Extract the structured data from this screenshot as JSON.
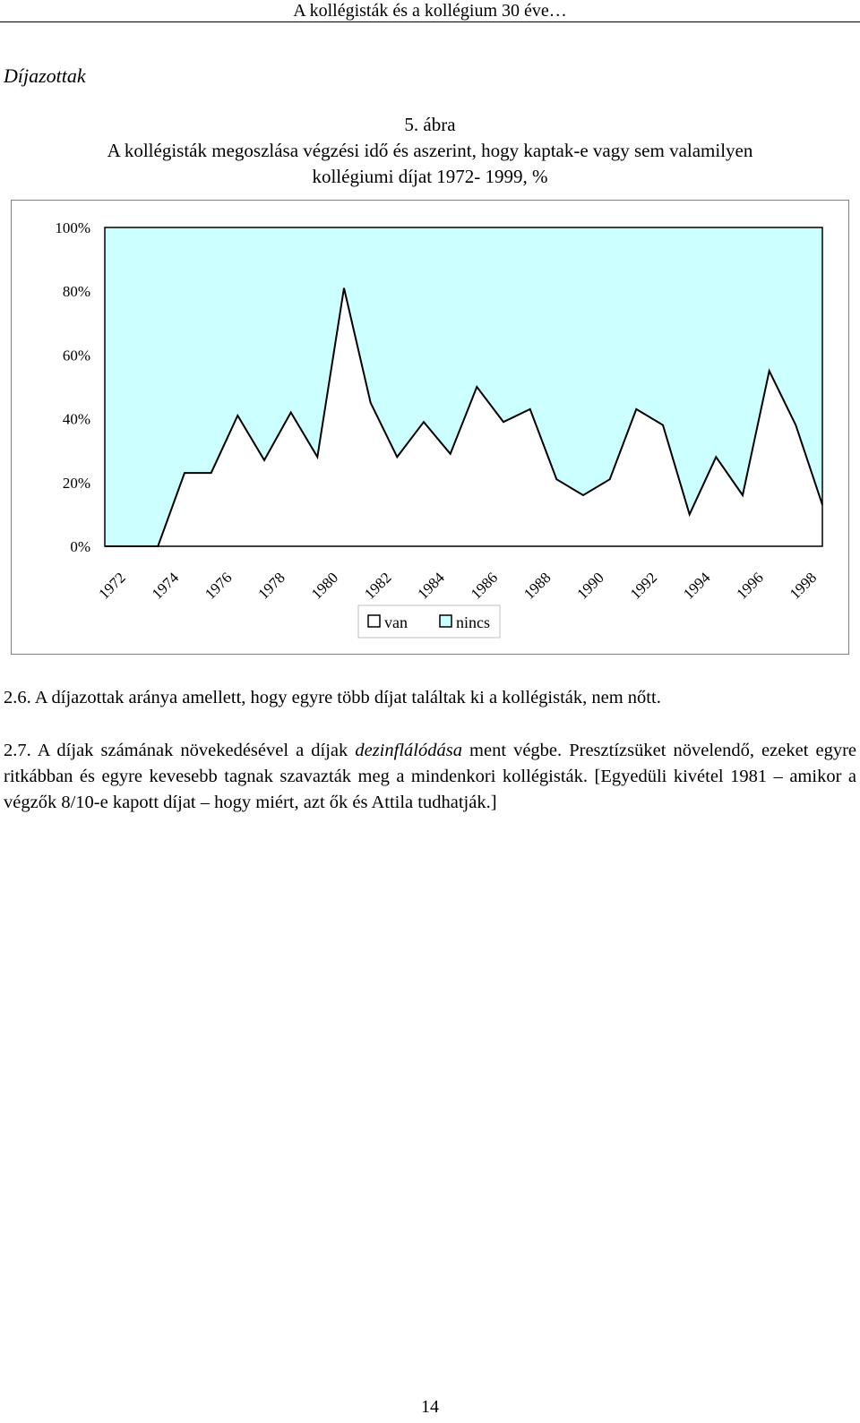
{
  "header": {
    "running_title": "A kollégisták és a kollégium 30 éve…"
  },
  "section": {
    "title": "Díjazottak"
  },
  "figure": {
    "number": "5. ábra",
    "caption_line1": "A kollégisták megoszlása végzési idő és aszerint, hogy kaptak-e vagy sem valamilyen",
    "caption_line2": "kollégiumi díjat 1972- 1999, %"
  },
  "chart_data": {
    "type": "area",
    "stacked": true,
    "percent": true,
    "x": [
      1972,
      1973,
      1974,
      1975,
      1976,
      1977,
      1978,
      1979,
      1980,
      1981,
      1982,
      1983,
      1984,
      1985,
      1986,
      1987,
      1988,
      1989,
      1990,
      1991,
      1992,
      1993,
      1994,
      1995,
      1996,
      1997,
      1998,
      1999
    ],
    "x_tick_labels": [
      "1972",
      "1974",
      "1976",
      "1978",
      "1980",
      "1982",
      "1984",
      "1986",
      "1988",
      "1990",
      "1992",
      "1994",
      "1996",
      "1998"
    ],
    "y_tick_labels": [
      "0%",
      "20%",
      "40%",
      "60%",
      "80%",
      "100%"
    ],
    "ylim": [
      0,
      100
    ],
    "grid": false,
    "legend_position": "bottom-center",
    "series": [
      {
        "name": "van",
        "color": "#ffffff",
        "values": [
          0,
          0,
          0,
          23,
          23,
          41,
          27,
          42,
          28,
          81,
          45,
          28,
          39,
          29,
          50,
          39,
          43,
          21,
          16,
          21,
          43,
          38,
          10,
          28,
          16,
          55,
          38,
          13
        ]
      },
      {
        "name": "nincs",
        "color": "#ccffff",
        "values": [
          100,
          100,
          100,
          77,
          77,
          59,
          73,
          58,
          72,
          19,
          55,
          72,
          61,
          71,
          50,
          61,
          57,
          79,
          84,
          79,
          57,
          62,
          90,
          72,
          84,
          45,
          62,
          87
        ]
      }
    ]
  },
  "body": {
    "p1": "2.6. A díjazottak aránya amellett, hogy egyre több díjat találtak ki a kollégisták, nem nőtt.",
    "p2_a": "2.7. A díjak számának növekedésével a díjak ",
    "p2_em": "dezinflálódása",
    "p2_b": " ment végbe. Presztízsüket növelendő, ezeket egyre ritkábban és egyre kevesebb tagnak szavazták meg a mindenkori kollégisták. [Egyedüli kivétel 1981 – amikor a végzők 8/10-e kapott díjat – hogy miért, azt ők és Attila tudhatják.]"
  },
  "footer": {
    "page_number": "14"
  }
}
